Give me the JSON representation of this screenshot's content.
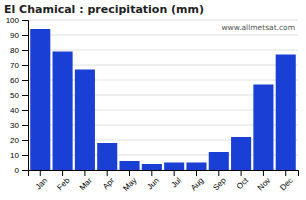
{
  "chart_data": {
    "type": "bar",
    "title": "El Chamical : precipitation (mm)",
    "categories": [
      "Jan",
      "Feb",
      "Mar",
      "Apr",
      "May",
      "Jun",
      "Jul",
      "Aug",
      "Sep",
      "Oct",
      "Nov",
      "Dec"
    ],
    "values": [
      94,
      79,
      67,
      18,
      6,
      4,
      5,
      5,
      12,
      22,
      57,
      77
    ],
    "color": "#1a3fd4",
    "ylim": [
      0,
      100
    ],
    "yticks": [
      0,
      10,
      20,
      30,
      40,
      50,
      60,
      70,
      80,
      90,
      100
    ],
    "grid": true,
    "annotations": [
      "www.allmetsat.com"
    ]
  }
}
